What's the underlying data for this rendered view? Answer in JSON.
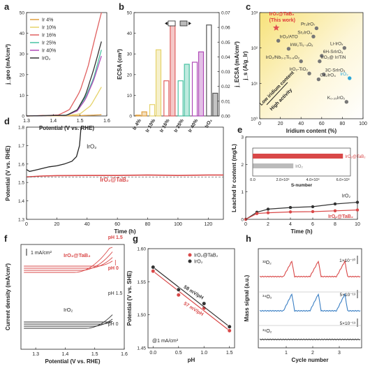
{
  "panels": {
    "a": {
      "letter": "a"
    },
    "b": {
      "letter": "b"
    },
    "c": {
      "letter": "c"
    },
    "d": {
      "letter": "d"
    },
    "e": {
      "letter": "e"
    },
    "f": {
      "letter": "f"
    },
    "g": {
      "letter": "g"
    },
    "h": {
      "letter": "h"
    }
  },
  "chart_data": [
    {
      "panel": "a",
      "type": "line",
      "xlabel": "Potential (V vs. RHE)",
      "ylabel": "j_geo (mA/cm²)",
      "xlim": [
        1.3,
        1.6
      ],
      "ylim": [
        0,
        50
      ],
      "xticks": [
        "1.3",
        "1.4",
        "1.5",
        "1.6"
      ],
      "yticks": [
        "0",
        "10",
        "20",
        "30",
        "40",
        "50"
      ],
      "legend_placement": "top-left",
      "series": [
        {
          "name": "Ir 4%",
          "color": "#e0a040",
          "x": [
            1.3,
            1.45,
            1.5,
            1.55,
            1.58
          ],
          "y": [
            0,
            0.1,
            0.2,
            0.4,
            0.6
          ]
        },
        {
          "name": "Ir 10%",
          "color": "#e6d36a",
          "x": [
            1.3,
            1.45,
            1.5,
            1.54,
            1.58
          ],
          "y": [
            0,
            0.2,
            1.0,
            5,
            14
          ]
        },
        {
          "name": "Ir 16%",
          "color": "#e06060",
          "x": [
            1.3,
            1.42,
            1.46,
            1.5,
            1.53,
            1.56,
            1.58
          ],
          "y": [
            0,
            0.5,
            3,
            12,
            24,
            40,
            50
          ]
        },
        {
          "name": "Ir 25%",
          "color": "#48c2a2",
          "x": [
            1.3,
            1.45,
            1.49,
            1.52,
            1.55,
            1.58
          ],
          "y": [
            0,
            0.4,
            3,
            9,
            18,
            32
          ]
        },
        {
          "name": "Ir 40%",
          "color": "#b04ab8",
          "x": [
            1.3,
            1.45,
            1.49,
            1.52,
            1.55,
            1.58
          ],
          "y": [
            0,
            0.3,
            2.5,
            8,
            17,
            29
          ]
        },
        {
          "name": "IrO₂",
          "color": "#333333",
          "x": [
            1.3,
            1.45,
            1.49,
            1.52,
            1.55,
            1.58
          ],
          "y": [
            0,
            0.3,
            3,
            10,
            22,
            36
          ]
        }
      ]
    },
    {
      "panel": "b",
      "type": "bar",
      "ylabel": "ECSA (cm²)",
      "ylabel_right": "j_ECSA (mA/cm²)",
      "categories": [
        "Ir 4%",
        "Ir 10%",
        "Ir 16%",
        "Ir 25%",
        "Ir 40%",
        "IrO₂"
      ],
      "ylim": [
        0,
        50
      ],
      "ylim_right": [
        0,
        0.07
      ],
      "yticks": [
        "0",
        "10",
        "20",
        "30",
        "40",
        "50"
      ],
      "yticks_right": [
        "0.00",
        "0.01",
        "0.02",
        "0.03",
        "0.04",
        "0.05",
        "0.06",
        "0.07"
      ],
      "colors": [
        "#e0a040",
        "#e6d36a",
        "#e06060",
        "#48c2a2",
        "#b04ab8",
        "#555555"
      ],
      "series": [
        {
          "kind": "open",
          "values": [
            0.4,
            5.5,
            17,
            17,
            26,
            44
          ]
        },
        {
          "kind": "filled",
          "values": [
            2,
            32,
            45,
            25,
            31,
            11
          ]
        }
      ],
      "extra_hatched": [
        null,
        null,
        null,
        null,
        11,
        8
      ]
    },
    {
      "panel": "c",
      "type": "scatter",
      "xlabel": "Iridium content (%)",
      "ylabel": "j_s (A/g_Ir)",
      "xlim": [
        0,
        100
      ],
      "ylim_log": [
        1,
        1000
      ],
      "xticks": [
        "0",
        "20",
        "40",
        "60",
        "80",
        "100"
      ],
      "yticks": [
        "10⁰",
        "10¹",
        "10²",
        "10³"
      ],
      "points": [
        {
          "label": "IrO₂@TaB₂",
          "sub": "(This work)",
          "x": 16,
          "y": 370,
          "highlight": true
        },
        {
          "label": "Pr₃IrO₇",
          "x": 55,
          "y": 360
        },
        {
          "label": "IrO₂/ATO",
          "x": 18,
          "y": 160
        },
        {
          "label": "Sr₂IrO₄",
          "x": 52,
          "y": 210
        },
        {
          "label": "IrW₂Ti₁₋ₓO₂",
          "x": 28,
          "y": 95
        },
        {
          "label": "Li-IrOₓ",
          "x": 82,
          "y": 100
        },
        {
          "label": "6H-SrIrO₃",
          "x": 60,
          "y": 60
        },
        {
          "label": "IrO₂/Nb₀.₂Ti₀.₈O₂",
          "x": 40,
          "y": 42
        },
        {
          "label": "IrO₂@ Ir/TiN",
          "x": 58,
          "y": 42
        },
        {
          "label": "IrO₂-TiO₂",
          "x": 48,
          "y": 19
        },
        {
          "label": "3C-SrIrO₃",
          "x": 62,
          "y": 18
        },
        {
          "label": "IrO₂",
          "x": 87,
          "y": 14,
          "color": "#2fa8d8"
        },
        {
          "label": "Ca₂IrO₄",
          "x": 57,
          "y": 13
        },
        {
          "label": "K₀.₂₅IrO₂",
          "x": 84,
          "y": 3
        }
      ],
      "annotation": "Low iridium content",
      "annotation2": "High activity"
    },
    {
      "panel": "d",
      "type": "line",
      "xlabel": "Time (h)",
      "ylabel": "Potential (V vs. RHE)",
      "xlim": [
        0,
        130
      ],
      "ylim": [
        1.3,
        1.8
      ],
      "xticks": [
        "0",
        "20",
        "40",
        "60",
        "80",
        "100",
        "120"
      ],
      "yticks": [
        "1.3",
        "1.4",
        "1.5",
        "1.6",
        "1.7",
        "1.8"
      ],
      "series": [
        {
          "name": "IrO₂",
          "color": "#222222",
          "x": [
            0,
            2,
            5,
            10,
            15,
            20,
            25,
            30,
            33,
            35,
            36
          ],
          "y": [
            1.57,
            1.56,
            1.565,
            1.575,
            1.585,
            1.59,
            1.6,
            1.615,
            1.64,
            1.7,
            1.8
          ]
        },
        {
          "name": "IrO₂@TaB₂",
          "color": "#d94848",
          "x": [
            0,
            10,
            20,
            40,
            60,
            80,
            100,
            120,
            130
          ],
          "y": [
            1.53,
            1.535,
            1.537,
            1.538,
            1.538,
            1.54,
            1.538,
            1.54,
            1.54
          ]
        }
      ]
    },
    {
      "panel": "e",
      "type": "line",
      "xlabel": "Time (h)",
      "ylabel": "Leached Ir content (mg/L)",
      "xlim": [
        0,
        10
      ],
      "ylim": [
        0,
        3
      ],
      "xticks": [
        "0",
        "2",
        "4",
        "6",
        "8",
        "10"
      ],
      "yticks": [
        "0",
        "1",
        "2",
        "3"
      ],
      "series": [
        {
          "name": "IrO₂",
          "color": "#333333",
          "x": [
            0,
            1,
            2,
            4,
            6,
            8,
            10
          ],
          "y": [
            0,
            0.26,
            0.37,
            0.43,
            0.46,
            0.56,
            0.62
          ]
        },
        {
          "name": "IrO₂@TaB₂",
          "color": "#d94848",
          "x": [
            0,
            1,
            2,
            4,
            6,
            8,
            10
          ],
          "y": [
            0,
            0.21,
            0.24,
            0.27,
            0.28,
            0.31,
            0.34
          ]
        }
      ],
      "inset": {
        "xlabel": "S-number",
        "xticks": [
          "0.0",
          "2.0×10⁶",
          "4.0×10⁶",
          "6.0×10⁶"
        ],
        "xlim": [
          0,
          6.5
        ],
        "bars": [
          {
            "name": "IrO₂@TaB₂",
            "value": 6.0,
            "color": "#d94848"
          },
          {
            "name": "IrO₂",
            "value": 2.7,
            "color": "#777777"
          }
        ]
      }
    },
    {
      "panel": "f",
      "type": "line",
      "xlabel": "Potential (V vs. RHE)",
      "ylabel": "Current density (mA/cm²)",
      "xticks": [
        "1.3",
        "1.4",
        "1.5",
        "1.6"
      ],
      "scale_bar": "1 mA/cm²",
      "groups": [
        {
          "name": "IrO₂@TaB₂",
          "color": "#d94848",
          "ph_top": "pH 1.5",
          "ph_bottom": "pH 0"
        },
        {
          "name": "IrO₂",
          "color": "#333333",
          "ph_top": "pH 1.5",
          "ph_bottom": "pH 0"
        }
      ]
    },
    {
      "panel": "g",
      "type": "scatter",
      "xlabel": "pH",
      "ylabel": "Potential (V vs. SHE)",
      "xlim": [
        0,
        1.5
      ],
      "ylim": [
        1.45,
        1.6
      ],
      "xticks": [
        "0.0",
        "0.5",
        "1.0",
        "1.5"
      ],
      "yticks": [
        "1.45",
        "1.50",
        "1.55",
        "1.60"
      ],
      "annotation": "@1 mA/cm²",
      "series": [
        {
          "name": "IrO₂@TaB₂",
          "color": "#d94848",
          "slope_label": "57 mV/pH",
          "x": [
            0,
            0.5,
            1.0,
            1.5
          ],
          "y": [
            1.566,
            1.53,
            1.51,
            1.476
          ]
        },
        {
          "name": "IrO₂",
          "color": "#333333",
          "slope_label": "58 mV/pH",
          "x": [
            0,
            0.5,
            1.0,
            1.5
          ],
          "y": [
            1.572,
            1.538,
            1.517,
            1.482
          ]
        }
      ]
    },
    {
      "panel": "h",
      "type": "line",
      "xlabel": "Cycle number",
      "ylabel": "Mass signal (a.u.)",
      "xticks": [
        "1",
        "2",
        "3"
      ],
      "series": [
        {
          "name": "³²O₂",
          "color": "#d94848",
          "scale": "1×10⁻¹⁰"
        },
        {
          "name": "³⁴O₂",
          "color": "#3a7fc4",
          "scale": "5×10⁻¹³"
        },
        {
          "name": "³⁶O₂",
          "color": "#333333",
          "scale": "5×10⁻¹³"
        }
      ]
    }
  ]
}
